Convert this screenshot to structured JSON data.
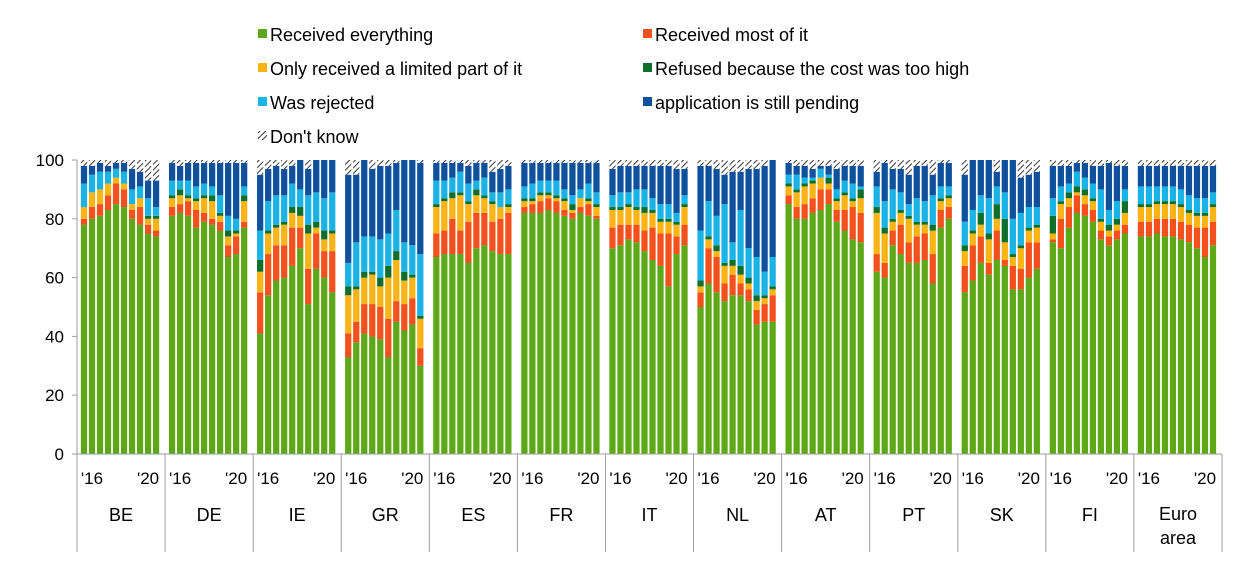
{
  "chart_data": {
    "type": "bar",
    "stacked": true,
    "title": "",
    "xlabel": "",
    "ylabel": "",
    "ylim": [
      0,
      100
    ],
    "yticks": [
      0,
      20,
      40,
      60,
      80,
      100
    ],
    "legend_position": "top",
    "grid": false,
    "series": [
      {
        "name": "Received everything",
        "color": "#5ea818"
      },
      {
        "name": "Received most of it",
        "color": "#f4501d"
      },
      {
        "name": "Only received a limited part of it",
        "color": "#fbb416"
      },
      {
        "name": "Refused because the cost was too high",
        "color": "#0f6e2a"
      },
      {
        "name": "Was rejected",
        "color": "#19b3e6"
      },
      {
        "name": "application is still pending",
        "color": "#0f509c"
      },
      {
        "name": "Don't know",
        "color": "#ffffff",
        "pattern": "hatch"
      }
    ],
    "periods_per_group": 10,
    "period_tick_labels": [
      {
        "index": 1,
        "label": "'16"
      },
      {
        "index": 8,
        "label": "'20"
      }
    ],
    "groups": [
      {
        "label": "BE",
        "bars": [
          [
            78,
            2,
            4,
            0,
            8,
            6,
            2
          ],
          [
            80,
            4,
            5,
            0,
            6,
            3,
            2
          ],
          [
            81,
            4,
            5,
            0,
            6,
            3,
            1
          ],
          [
            83,
            5,
            4,
            0,
            4,
            2,
            2
          ],
          [
            85,
            7,
            2,
            0,
            3,
            2,
            1
          ],
          [
            84,
            6,
            2,
            0,
            4,
            3,
            1
          ],
          [
            80,
            3,
            2,
            0,
            5,
            7,
            3
          ],
          [
            78,
            6,
            3,
            0,
            4,
            5,
            4
          ],
          [
            75,
            3,
            2,
            1,
            6,
            6,
            7
          ],
          [
            74,
            2,
            4,
            1,
            3,
            9,
            7
          ]
        ]
      },
      {
        "label": "DE",
        "bars": [
          [
            81,
            3,
            3,
            1,
            5,
            6,
            1
          ],
          [
            82,
            3,
            3,
            2,
            3,
            5,
            2
          ],
          [
            81,
            5,
            1,
            1,
            5,
            6,
            1
          ],
          [
            77,
            6,
            3,
            1,
            4,
            8,
            1
          ],
          [
            79,
            3,
            5,
            1,
            4,
            7,
            1
          ],
          [
            78,
            2,
            6,
            2,
            3,
            8,
            1
          ],
          [
            76,
            3,
            2,
            1,
            6,
            11,
            1
          ],
          [
            67,
            4,
            3,
            2,
            5,
            18,
            1
          ],
          [
            68,
            6,
            1,
            1,
            4,
            19,
            1
          ],
          [
            77,
            2,
            7,
            2,
            3,
            8,
            1
          ]
        ]
      },
      {
        "label": "IE",
        "bars": [
          [
            41,
            14,
            7,
            4,
            10,
            19,
            5
          ],
          [
            54,
            14,
            7,
            1,
            10,
            11,
            3
          ],
          [
            59,
            12,
            6,
            1,
            10,
            10,
            2
          ],
          [
            60,
            11,
            7,
            1,
            9,
            9,
            3
          ],
          [
            64,
            13,
            5,
            2,
            8,
            6,
            2
          ],
          [
            70,
            7,
            4,
            3,
            6,
            10,
            0
          ],
          [
            51,
            12,
            12,
            3,
            10,
            9,
            3
          ],
          [
            63,
            12,
            2,
            2,
            10,
            11,
            0
          ],
          [
            60,
            9,
            4,
            3,
            11,
            13,
            0
          ],
          [
            55,
            14,
            6,
            1,
            13,
            11,
            0
          ]
        ]
      },
      {
        "label": "GR",
        "bars": [
          [
            33,
            8,
            13,
            3,
            8,
            30,
            5
          ],
          [
            38,
            7,
            11,
            1,
            15,
            23,
            5
          ],
          [
            41,
            10,
            9,
            2,
            12,
            26,
            0
          ],
          [
            40,
            11,
            10,
            1,
            12,
            23,
            3
          ],
          [
            39,
            11,
            7,
            3,
            13,
            25,
            2
          ],
          [
            33,
            13,
            14,
            4,
            11,
            23,
            2
          ],
          [
            45,
            7,
            14,
            3,
            14,
            16,
            1
          ],
          [
            42,
            9,
            8,
            3,
            10,
            28,
            0
          ],
          [
            44,
            9,
            7,
            1,
            10,
            29,
            0
          ],
          [
            30,
            6,
            10,
            1,
            21,
            31,
            1
          ]
        ]
      },
      {
        "label": "ES",
        "bars": [
          [
            67,
            8,
            9,
            1,
            8,
            6,
            1
          ],
          [
            68,
            8,
            10,
            1,
            6,
            6,
            1
          ],
          [
            68,
            12,
            7,
            2,
            5,
            5,
            1
          ],
          [
            68,
            8,
            12,
            1,
            7,
            3,
            1
          ],
          [
            65,
            14,
            6,
            1,
            6,
            6,
            2
          ],
          [
            70,
            12,
            6,
            2,
            3,
            6,
            1
          ],
          [
            71,
            11,
            5,
            1,
            6,
            5,
            1
          ],
          [
            69,
            10,
            6,
            1,
            3,
            7,
            4
          ],
          [
            68,
            12,
            4,
            0,
            5,
            8,
            3
          ],
          [
            68,
            14,
            2,
            1,
            5,
            8,
            2
          ]
        ]
      },
      {
        "label": "FR",
        "bars": [
          [
            82,
            2,
            2,
            1,
            4,
            8,
            1
          ],
          [
            82,
            3,
            1,
            1,
            5,
            7,
            1
          ],
          [
            82,
            4,
            2,
            1,
            4,
            6,
            1
          ],
          [
            83,
            4,
            1,
            1,
            4,
            6,
            1
          ],
          [
            82,
            4,
            1,
            1,
            5,
            6,
            1
          ],
          [
            81,
            2,
            3,
            1,
            3,
            9,
            1
          ],
          [
            80,
            2,
            1,
            2,
            3,
            11,
            1
          ],
          [
            82,
            2,
            3,
            0,
            3,
            9,
            1
          ],
          [
            81,
            4,
            1,
            1,
            5,
            7,
            1
          ],
          [
            80,
            1,
            3,
            1,
            4,
            10,
            1
          ]
        ]
      },
      {
        "label": "IT",
        "bars": [
          [
            70,
            7,
            6,
            1,
            4,
            9,
            3
          ],
          [
            71,
            7,
            5,
            1,
            5,
            9,
            2
          ],
          [
            73,
            5,
            6,
            1,
            4,
            9,
            2
          ],
          [
            72,
            6,
            5,
            1,
            6,
            8,
            2
          ],
          [
            69,
            7,
            6,
            2,
            6,
            8,
            2
          ],
          [
            66,
            11,
            5,
            1,
            4,
            11,
            2
          ],
          [
            64,
            11,
            4,
            1,
            5,
            13,
            2
          ],
          [
            57,
            18,
            4,
            1,
            5,
            13,
            2
          ],
          [
            68,
            6,
            4,
            1,
            3,
            15,
            3
          ],
          [
            71,
            7,
            6,
            1,
            3,
            9,
            3
          ]
        ]
      },
      {
        "label": "NL",
        "bars": [
          [
            50,
            5,
            2,
            2,
            17,
            22,
            2
          ],
          [
            58,
            12,
            3,
            1,
            12,
            12,
            2
          ],
          [
            55,
            12,
            2,
            2,
            10,
            16,
            3
          ],
          [
            52,
            6,
            6,
            1,
            20,
            10,
            5
          ],
          [
            54,
            7,
            3,
            2,
            6,
            24,
            4
          ],
          [
            54,
            4,
            3,
            3,
            19,
            13,
            4
          ],
          [
            52,
            4,
            2,
            2,
            10,
            27,
            3
          ],
          [
            44,
            5,
            3,
            2,
            13,
            30,
            3
          ],
          [
            45,
            6,
            2,
            1,
            8,
            36,
            2
          ],
          [
            45,
            9,
            2,
            1,
            10,
            33,
            0
          ]
        ]
      },
      {
        "label": "AT",
        "bars": [
          [
            85,
            3,
            3,
            1,
            3,
            4,
            1
          ],
          [
            80,
            4,
            5,
            1,
            5,
            3,
            2
          ],
          [
            80,
            5,
            6,
            1,
            2,
            4,
            2
          ],
          [
            82,
            5,
            5,
            1,
            1,
            3,
            3
          ],
          [
            83,
            7,
            4,
            0,
            3,
            1,
            2
          ],
          [
            85,
            5,
            2,
            2,
            1,
            3,
            2
          ],
          [
            79,
            4,
            3,
            1,
            3,
            7,
            3
          ],
          [
            76,
            7,
            5,
            1,
            4,
            5,
            2
          ],
          [
            73,
            11,
            2,
            1,
            5,
            6,
            2
          ],
          [
            72,
            10,
            5,
            3,
            1,
            7,
            2
          ]
        ]
      },
      {
        "label": "PT",
        "bars": [
          [
            62,
            6,
            14,
            2,
            7,
            5,
            4
          ],
          [
            60,
            5,
            10,
            2,
            9,
            13,
            1
          ],
          [
            71,
            5,
            3,
            1,
            10,
            7,
            3
          ],
          [
            68,
            10,
            4,
            1,
            6,
            8,
            3
          ],
          [
            65,
            7,
            8,
            1,
            4,
            10,
            5
          ],
          [
            65,
            9,
            4,
            1,
            8,
            11,
            2
          ],
          [
            66,
            9,
            3,
            1,
            7,
            12,
            2
          ],
          [
            58,
            10,
            8,
            2,
            10,
            7,
            5
          ],
          [
            77,
            6,
            3,
            1,
            4,
            8,
            1
          ],
          [
            80,
            4,
            3,
            1,
            3,
            8,
            1
          ]
        ]
      },
      {
        "label": "SK",
        "bars": [
          [
            55,
            9,
            5,
            2,
            8,
            16,
            5
          ],
          [
            59,
            12,
            4,
            1,
            7,
            17,
            0
          ],
          [
            65,
            9,
            4,
            4,
            6,
            12,
            0
          ],
          [
            61,
            4,
            8,
            2,
            12,
            13,
            0
          ],
          [
            66,
            10,
            4,
            5,
            6,
            5,
            4
          ],
          [
            64,
            2,
            6,
            8,
            9,
            11,
            0
          ],
          [
            56,
            8,
            3,
            1,
            12,
            20,
            0
          ],
          [
            56,
            7,
            7,
            1,
            11,
            12,
            6
          ],
          [
            60,
            12,
            4,
            1,
            7,
            11,
            5
          ],
          [
            63,
            9,
            5,
            1,
            6,
            12,
            4
          ]
        ]
      },
      {
        "label": "FI",
        "bars": [
          [
            72,
            1,
            2,
            6,
            6,
            11,
            2
          ],
          [
            70,
            10,
            5,
            1,
            5,
            7,
            2
          ],
          [
            77,
            7,
            3,
            2,
            3,
            6,
            2
          ],
          [
            82,
            6,
            1,
            2,
            5,
            3,
            1
          ],
          [
            81,
            4,
            3,
            2,
            4,
            5,
            1
          ],
          [
            79,
            4,
            3,
            1,
            5,
            6,
            2
          ],
          [
            73,
            3,
            3,
            1,
            10,
            8,
            2
          ],
          [
            71,
            3,
            2,
            2,
            5,
            16,
            1
          ],
          [
            73,
            3,
            2,
            2,
            6,
            12,
            2
          ],
          [
            75,
            3,
            4,
            4,
            4,
            8,
            2
          ]
        ]
      },
      {
        "label": "Euro area",
        "bars": [
          [
            74,
            5,
            5,
            1,
            6,
            7,
            2
          ],
          [
            74,
            5,
            5,
            1,
            6,
            7,
            2
          ],
          [
            75,
            5,
            5,
            1,
            5,
            7,
            2
          ],
          [
            74,
            6,
            5,
            1,
            5,
            7,
            2
          ],
          [
            74,
            6,
            5,
            1,
            5,
            7,
            2
          ],
          [
            73,
            6,
            5,
            1,
            5,
            8,
            2
          ],
          [
            72,
            6,
            4,
            1,
            5,
            10,
            2
          ],
          [
            70,
            7,
            4,
            1,
            5,
            11,
            2
          ],
          [
            67,
            10,
            4,
            1,
            5,
            11,
            2
          ],
          [
            71,
            8,
            5,
            1,
            4,
            9,
            2
          ]
        ]
      }
    ]
  }
}
